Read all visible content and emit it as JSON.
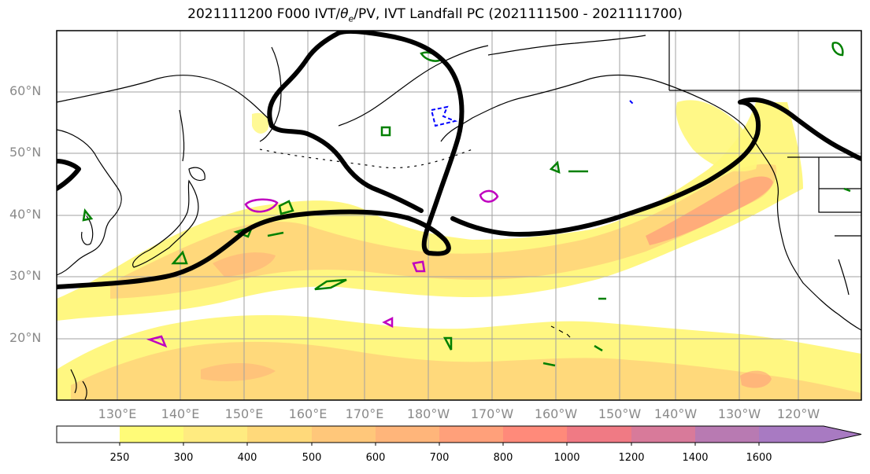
{
  "title_prefix": "2021111200 F000 IVT/",
  "title_theta": "θ",
  "title_sub": "e",
  "title_suffix": "/PV, IVT Landfall PC (2021111500 - 2021111700)",
  "lat_labels": [
    "60°N",
    "50°N",
    "40°N",
    "30°N",
    "20°N"
  ],
  "lon_labels": [
    "130°E",
    "140°E",
    "150°E",
    "160°E",
    "170°E",
    "180°W",
    "170°W",
    "160°W",
    "150°W",
    "140°W",
    "130°W",
    "120°W"
  ],
  "colorbar": {
    "labels": [
      "250",
      "300",
      "400",
      "500",
      "600",
      "700",
      "800",
      "1000",
      "1200",
      "1400",
      "1600"
    ],
    "colors": [
      "#ffffff",
      "#fffb78",
      "#ffeb80",
      "#ffd97a",
      "#ffc77a",
      "#ffb57a",
      "#ffa07a",
      "#ff8a7a",
      "#f07a84",
      "#d87a9a",
      "#b87ab2",
      "#a87ac2",
      "#a57ac6"
    ]
  },
  "map_colors": {
    "ocean": "#ffffff",
    "ivt_low": "#fff77a",
    "ivt_mid": "#ffd47a",
    "ivt_high": "#ff9e7a",
    "coast": "#000000",
    "pc_line": "#000000",
    "theta_contour": "#008000",
    "pv_contour": "#c000c0",
    "neg_contour": "#0000ff"
  }
}
